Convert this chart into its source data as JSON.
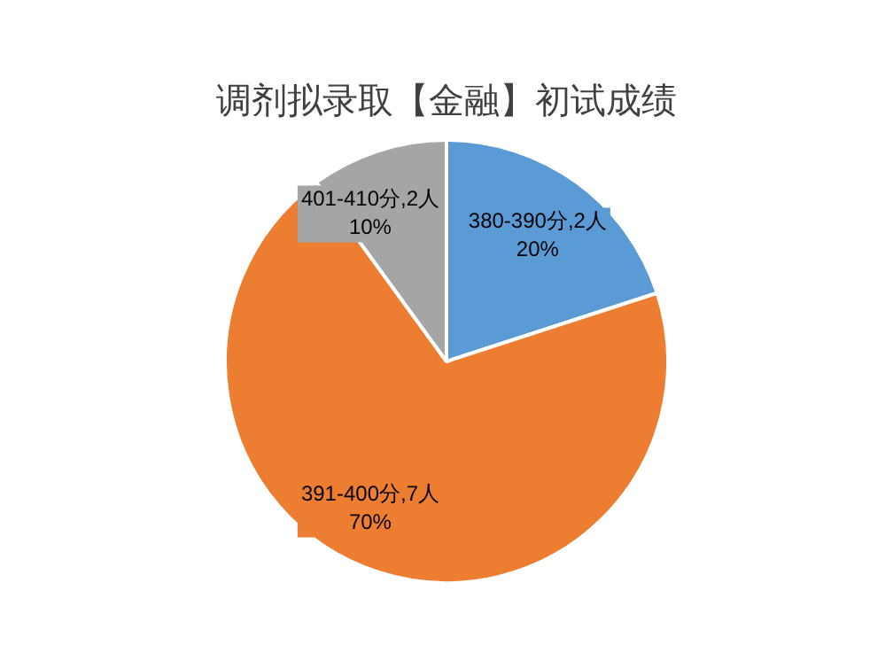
{
  "chart_data": {
    "type": "pie",
    "title": "调剂拟录取【金融】初试成绩",
    "categories": [
      "380-390分,2人",
      "391-400分,7人",
      "401-410分,2人"
    ],
    "values": [
      20,
      70,
      10
    ],
    "colors": [
      "#5b9bd5",
      "#ed7d31",
      "#a5a5a5"
    ],
    "value_labels": [
      "20%",
      "70%",
      "10%"
    ],
    "legend": false
  }
}
